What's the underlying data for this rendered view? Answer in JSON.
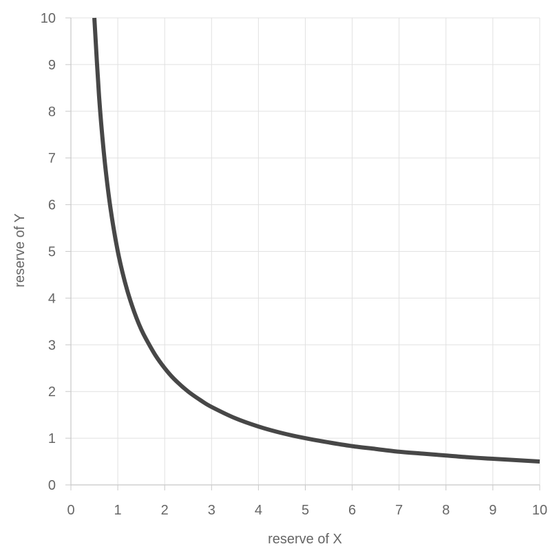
{
  "chart_data": {
    "type": "line",
    "title": "",
    "xlabel": "reserve of X",
    "ylabel": "reserve of Y",
    "xlim": [
      0,
      10
    ],
    "ylim": [
      0,
      10
    ],
    "x_ticks": [
      "0",
      "1",
      "2",
      "3",
      "4",
      "5",
      "6",
      "7",
      "8",
      "9",
      "10"
    ],
    "y_ticks": [
      "0",
      "1",
      "2",
      "3",
      "4",
      "5",
      "6",
      "7",
      "8",
      "9",
      "10"
    ],
    "grid": true,
    "legend": "none",
    "line_color": "#474747",
    "series": [
      {
        "x": [
          0.5,
          0.6,
          0.7,
          0.8,
          0.9,
          1,
          1.1,
          1.2,
          1.3,
          1.4,
          1.5,
          1.6,
          1.8,
          2,
          2.2,
          2.5,
          2.8,
          3,
          3.5,
          4,
          4.5,
          5,
          5.5,
          6,
          6.5,
          7,
          7.5,
          8,
          8.5,
          9,
          9.5,
          10
        ],
        "y": [
          10,
          8.33,
          7.14,
          6.25,
          5.56,
          5,
          4.55,
          4.17,
          3.85,
          3.57,
          3.33,
          3.13,
          2.78,
          2.5,
          2.27,
          2,
          1.79,
          1.67,
          1.43,
          1.25,
          1.11,
          1,
          0.91,
          0.83,
          0.77,
          0.71,
          0.67,
          0.63,
          0.59,
          0.56,
          0.53,
          0.5
        ]
      }
    ]
  }
}
